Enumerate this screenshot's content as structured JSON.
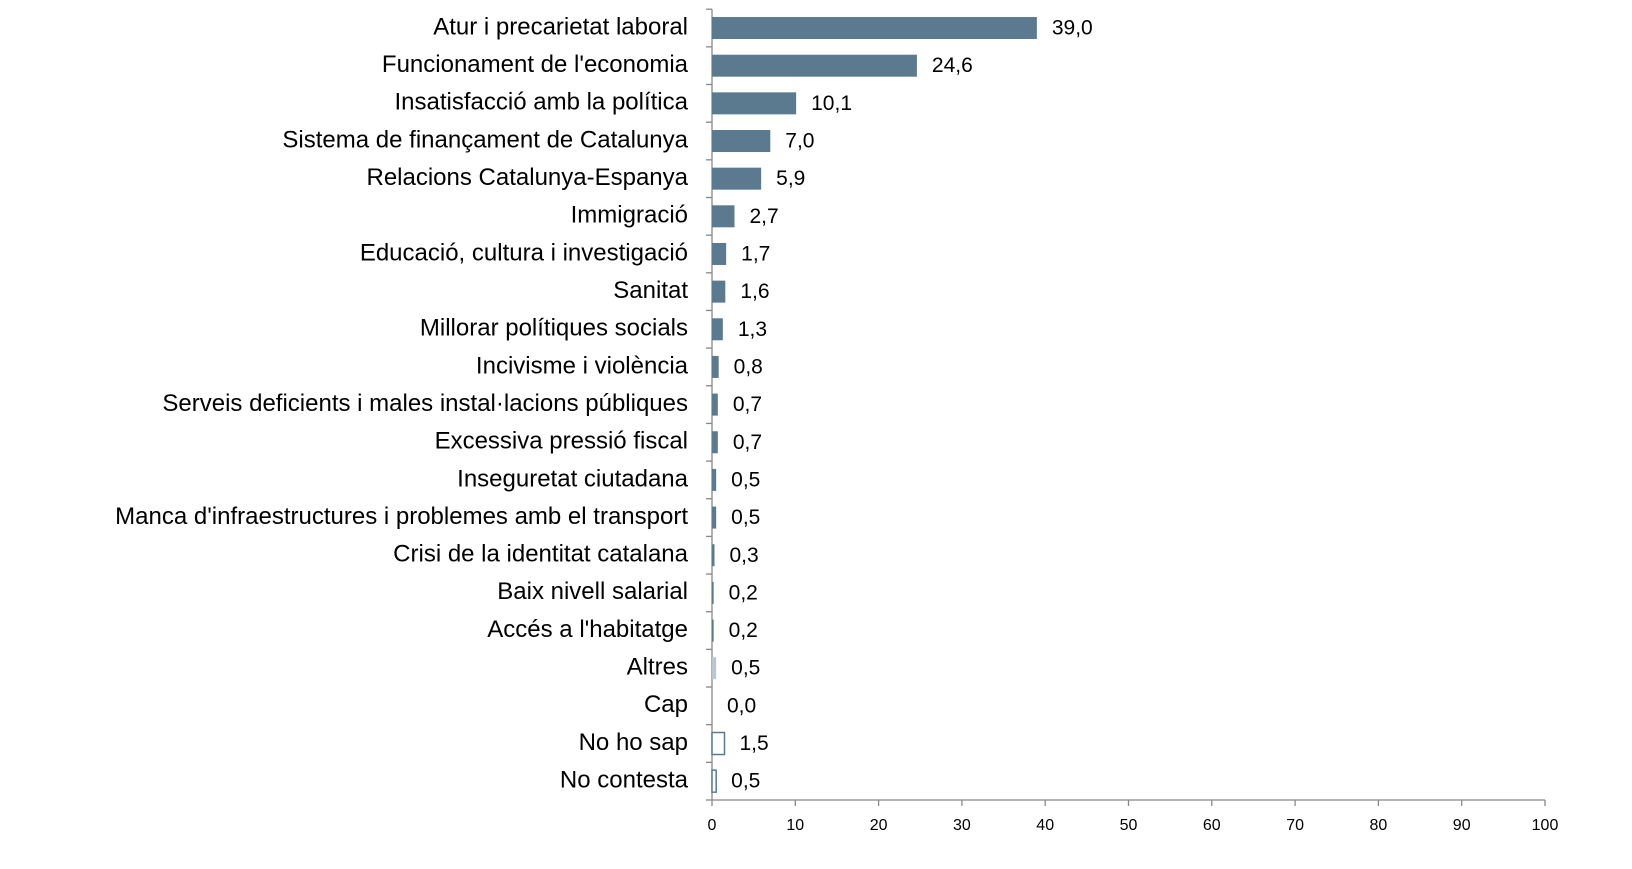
{
  "chart_data": {
    "type": "barh",
    "categories": [
      "Atur i precarietat laboral",
      "Funcionament de l'economia",
      "Insatisfacció amb la política",
      "Sistema de finançament de Catalunya",
      "Relacions Catalunya-Espanya",
      "Immigració",
      "Educació, cultura i investigació",
      "Sanitat",
      "Millorar polítiques socials",
      "Incivisme i violència",
      "Serveis deficients i males instal·lacions públiques",
      "Excessiva pressió fiscal",
      "Inseguretat ciutadana",
      "Manca d'infraestructures i problemes amb el transport",
      "Crisi de la identitat catalana",
      "Baix nivell salarial",
      "Accés a l'habitatge",
      "Altres",
      "Cap",
      "No ho sap",
      "No contesta"
    ],
    "values": [
      39.0,
      24.6,
      10.1,
      7.0,
      5.9,
      2.7,
      1.7,
      1.6,
      1.3,
      0.8,
      0.7,
      0.7,
      0.5,
      0.5,
      0.3,
      0.2,
      0.2,
      0.5,
      0.0,
      1.5,
      0.5
    ],
    "value_labels": [
      "39,0",
      "24,6",
      "10,1",
      "7,0",
      "5,9",
      "2,7",
      "1,7",
      "1,6",
      "1,3",
      "0,8",
      "0,7",
      "0,7",
      "0,5",
      "0,5",
      "0,3",
      "0,2",
      "0,2",
      "0,5",
      "0,0",
      "1,5",
      "0,5"
    ],
    "colors": [
      "#5b7a8f",
      "#5b7a8f",
      "#5b7a8f",
      "#5b7a8f",
      "#5b7a8f",
      "#5b7a8f",
      "#5b7a8f",
      "#5b7a8f",
      "#5b7a8f",
      "#5b7a8f",
      "#5b7a8f",
      "#5b7a8f",
      "#5b7a8f",
      "#5b7a8f",
      "#5b7a8f",
      "#5b7a8f",
      "#5b7a8f",
      "#b8c7d3",
      "#b8c7d3",
      "#ffffff",
      "#ffffff"
    ],
    "edge_color": "#5b7a8f",
    "xlim": [
      0,
      100
    ],
    "xticks": [
      0,
      10,
      20,
      30,
      40,
      50,
      60,
      70,
      80,
      90,
      100
    ]
  }
}
